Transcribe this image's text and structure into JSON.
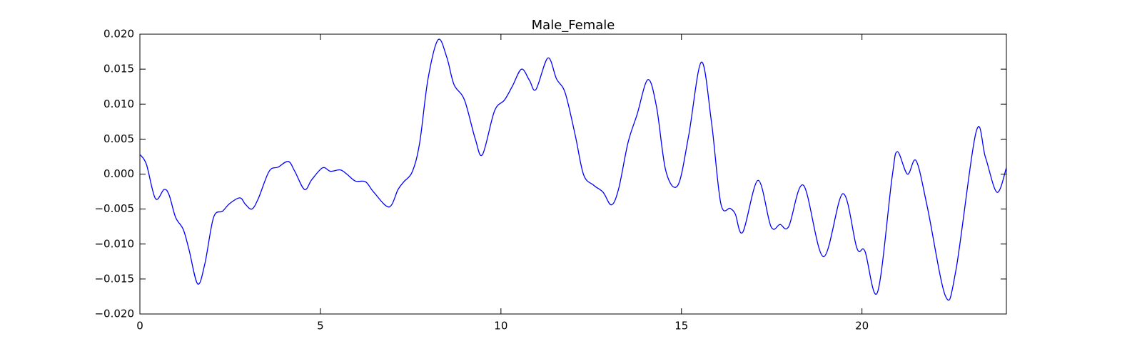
{
  "chart_data": {
    "type": "line",
    "title": "Male_Female",
    "x": [
      0,
      0.18,
      0.43,
      0.67,
      0.81,
      0.99,
      1.2,
      1.36,
      1.6,
      1.8,
      2.04,
      2.29,
      2.49,
      2.77,
      2.92,
      3.1,
      3.28,
      3.58,
      3.83,
      4.11,
      4.29,
      4.56,
      4.76,
      5.06,
      5.28,
      5.55,
      5.73,
      5.97,
      6.25,
      6.48,
      6.9,
      7.15,
      7.31,
      7.55,
      7.75,
      7.98,
      8.26,
      8.5,
      8.7,
      8.99,
      9.29,
      9.49,
      9.82,
      10.1,
      10.32,
      10.57,
      10.79,
      10.97,
      11.3,
      11.54,
      11.78,
      12.06,
      12.29,
      12.57,
      12.83,
      13.06,
      13.26,
      13.52,
      13.77,
      14.07,
      14.31,
      14.57,
      14.9,
      15.2,
      15.55,
      15.83,
      16.09,
      16.35,
      16.49,
      16.7,
      17.12,
      17.48,
      17.73,
      17.97,
      18.38,
      18.93,
      19.47,
      19.86,
      20.08,
      20.43,
      20.83,
      20.98,
      21.26,
      21.5,
      21.81,
      22.31,
      22.6,
      23.16,
      23.42,
      23.74,
      24
    ],
    "series": [
      {
        "name": "Male_Female",
        "color": "#0000ff",
        "values": [
          0.0028,
          0.0014,
          -0.0035,
          -0.0022,
          -0.003,
          -0.0062,
          -0.0079,
          -0.0108,
          -0.0157,
          -0.0128,
          -0.0062,
          -0.0053,
          -0.0042,
          -0.0034,
          -0.0043,
          -0.005,
          -0.0035,
          0.0004,
          0.001,
          0.0018,
          0.0004,
          -0.0022,
          -0.0008,
          0.0009,
          0.0004,
          0.0006,
          0,
          -0.001,
          -0.0011,
          -0.0026,
          -0.0047,
          -0.0022,
          -0.0011,
          0.0004,
          0.0045,
          0.0136,
          0.0192,
          0.0167,
          0.0128,
          0.0106,
          0.005,
          0.0028,
          0.009,
          0.0106,
          0.0126,
          0.015,
          0.0134,
          0.0121,
          0.0166,
          0.0136,
          0.0116,
          0.0055,
          -0.0001,
          -0.0016,
          -0.0026,
          -0.0044,
          -0.0021,
          0.0045,
          0.0085,
          0.0135,
          0.0096,
          0.0004,
          -0.0016,
          0.0055,
          0.016,
          0.0075,
          -0.0042,
          -0.0049,
          -0.0057,
          -0.0083,
          -0.0009,
          -0.0075,
          -0.0072,
          -0.0075,
          -0.0016,
          -0.0118,
          -0.0028,
          -0.0106,
          -0.011,
          -0.0169,
          -0.0006,
          0.0032,
          0,
          0.0019,
          -0.0047,
          -0.0174,
          -0.0138,
          0.006,
          0.0024,
          -0.0026,
          0.0009
        ]
      }
    ],
    "xlim": [
      0,
      24
    ],
    "xticks": [
      0,
      5,
      10,
      15,
      20
    ],
    "ylim": [
      -0.02,
      0.02
    ],
    "yticks": [
      {
        "value": -0.02,
        "label": "−0.020"
      },
      {
        "value": -0.015,
        "label": "−0.015"
      },
      {
        "value": -0.01,
        "label": "−0.010"
      },
      {
        "value": -0.005,
        "label": "−0.005"
      },
      {
        "value": 0,
        "label": "0.000"
      },
      {
        "value": 0.005,
        "label": "0.005"
      },
      {
        "value": 0.01,
        "label": "0.010"
      },
      {
        "value": 0.015,
        "label": "0.015"
      },
      {
        "value": 0.02,
        "label": "0.020"
      }
    ],
    "grid": false
  }
}
